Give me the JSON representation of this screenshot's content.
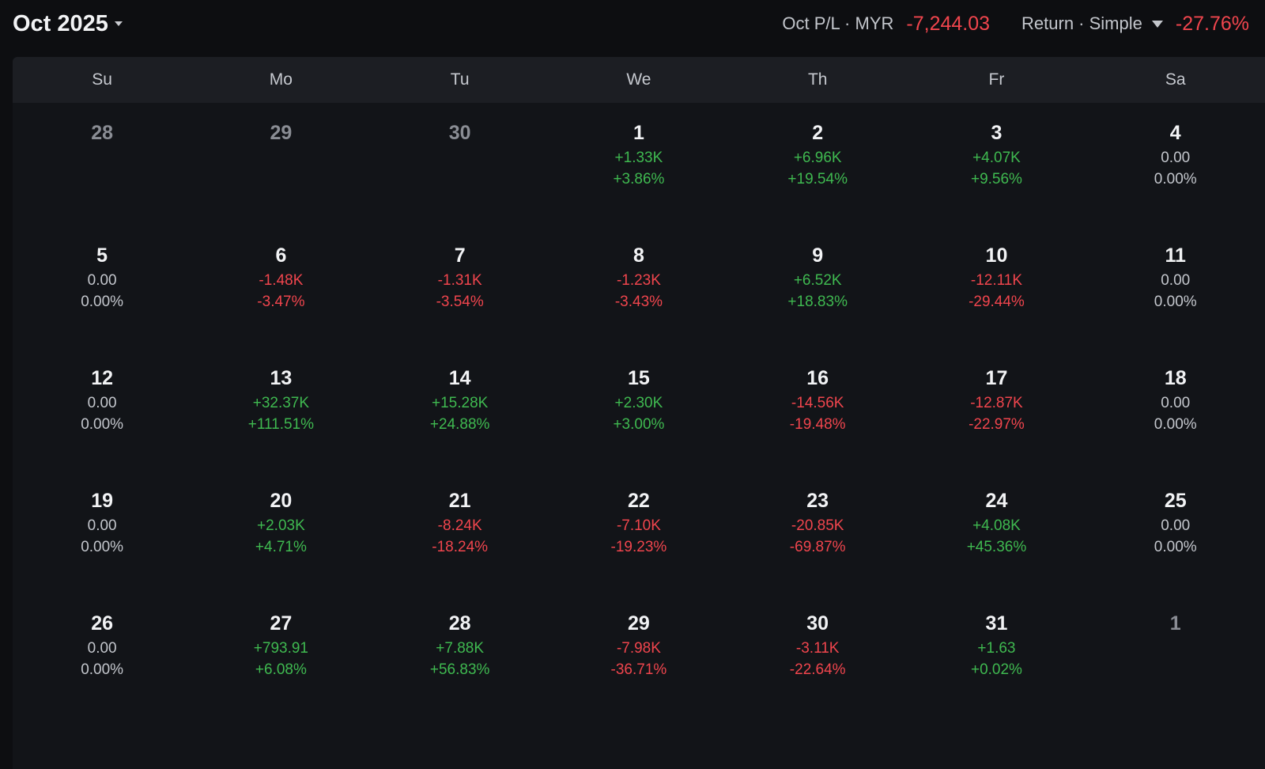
{
  "header": {
    "month": "Oct 2025",
    "pl_label": "Oct P/L · MYR",
    "pl_value": "-7,244.03",
    "return_label": "Return · Simple",
    "return_value": "-27.76%"
  },
  "weekdays": [
    "Su",
    "Mo",
    "Tu",
    "We",
    "Th",
    "Fr",
    "Sa"
  ],
  "weeks": [
    [
      {
        "day": "28",
        "other": true
      },
      {
        "day": "29",
        "other": true
      },
      {
        "day": "30",
        "other": true
      },
      {
        "day": "1",
        "pl": "+1.33K",
        "pct": "+3.86%"
      },
      {
        "day": "2",
        "pl": "+6.96K",
        "pct": "+19.54%"
      },
      {
        "day": "3",
        "pl": "+4.07K",
        "pct": "+9.56%"
      },
      {
        "day": "4",
        "pl": "0.00",
        "pct": "0.00%"
      }
    ],
    [
      {
        "day": "5",
        "pl": "0.00",
        "pct": "0.00%"
      },
      {
        "day": "6",
        "pl": "-1.48K",
        "pct": "-3.47%"
      },
      {
        "day": "7",
        "pl": "-1.31K",
        "pct": "-3.54%"
      },
      {
        "day": "8",
        "pl": "-1.23K",
        "pct": "-3.43%"
      },
      {
        "day": "9",
        "pl": "+6.52K",
        "pct": "+18.83%"
      },
      {
        "day": "10",
        "pl": "-12.11K",
        "pct": "-29.44%"
      },
      {
        "day": "11",
        "pl": "0.00",
        "pct": "0.00%"
      }
    ],
    [
      {
        "day": "12",
        "pl": "0.00",
        "pct": "0.00%"
      },
      {
        "day": "13",
        "pl": "+32.37K",
        "pct": "+111.51%"
      },
      {
        "day": "14",
        "pl": "+15.28K",
        "pct": "+24.88%"
      },
      {
        "day": "15",
        "pl": "+2.30K",
        "pct": "+3.00%"
      },
      {
        "day": "16",
        "pl": "-14.56K",
        "pct": "-19.48%"
      },
      {
        "day": "17",
        "pl": "-12.87K",
        "pct": "-22.97%"
      },
      {
        "day": "18",
        "pl": "0.00",
        "pct": "0.00%"
      }
    ],
    [
      {
        "day": "19",
        "pl": "0.00",
        "pct": "0.00%"
      },
      {
        "day": "20",
        "pl": "+2.03K",
        "pct": "+4.71%"
      },
      {
        "day": "21",
        "pl": "-8.24K",
        "pct": "-18.24%"
      },
      {
        "day": "22",
        "pl": "-7.10K",
        "pct": "-19.23%"
      },
      {
        "day": "23",
        "pl": "-20.85K",
        "pct": "-69.87%"
      },
      {
        "day": "24",
        "pl": "+4.08K",
        "pct": "+45.36%"
      },
      {
        "day": "25",
        "pl": "0.00",
        "pct": "0.00%"
      }
    ],
    [
      {
        "day": "26",
        "pl": "0.00",
        "pct": "0.00%"
      },
      {
        "day": "27",
        "pl": "+793.91",
        "pct": "+6.08%"
      },
      {
        "day": "28",
        "pl": "+7.88K",
        "pct": "+56.83%"
      },
      {
        "day": "29",
        "pl": "-7.98K",
        "pct": "-36.71%"
      },
      {
        "day": "30",
        "pl": "-3.11K",
        "pct": "-22.64%"
      },
      {
        "day": "31",
        "pl": "+1.63",
        "pct": "+0.02%"
      },
      {
        "day": "1",
        "other": true
      }
    ]
  ],
  "colors": {
    "positive": "#3fb950",
    "negative": "#f0454d",
    "neutral": "#c3c6cc"
  }
}
